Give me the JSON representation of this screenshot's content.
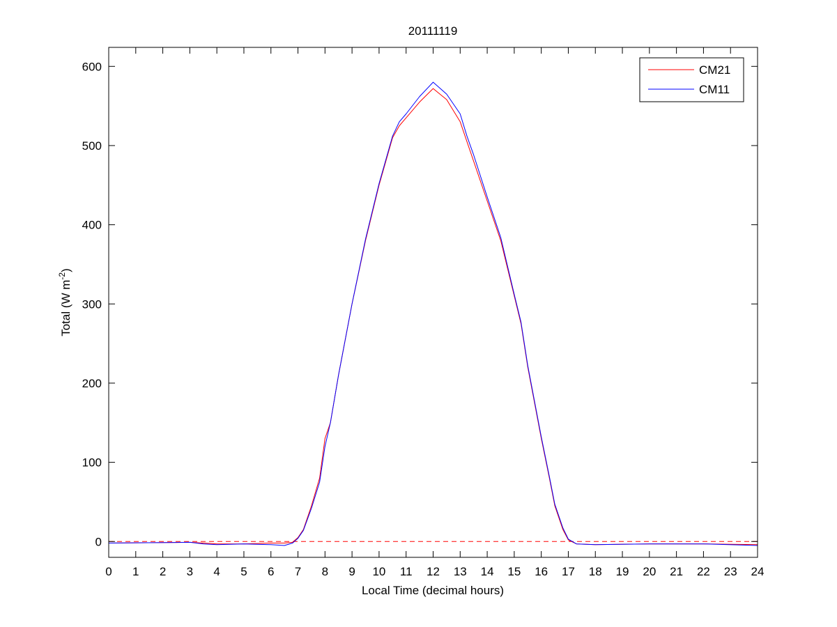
{
  "chart_data": {
    "type": "line",
    "title": "20111119",
    "xlabel": "Local Time (decimal hours)",
    "ylabel": "Total (W m-2)",
    "ylabel_parts": {
      "main": "Total (W m",
      "sup": "-2",
      "end": ")"
    },
    "xlim": [
      0,
      24
    ],
    "ylim": [
      -20,
      624
    ],
    "xticks": [
      0,
      1,
      2,
      3,
      4,
      5,
      6,
      7,
      8,
      9,
      10,
      11,
      12,
      13,
      14,
      15,
      16,
      17,
      18,
      19,
      20,
      21,
      22,
      23,
      24
    ],
    "yticks": [
      0,
      100,
      200,
      300,
      400,
      500,
      600
    ],
    "grid": false,
    "legend": {
      "placement": "top-right",
      "entries": [
        "CM21",
        "CM11"
      ]
    },
    "reference_line": {
      "y": 0,
      "style": "dashed",
      "color": "#ff0000"
    },
    "x": [
      0,
      3,
      3.5,
      4,
      5,
      6,
      6.5,
      6.8,
      7.0,
      7.2,
      7.5,
      7.8,
      8.0,
      8.2,
      8.5,
      9.0,
      9.5,
      10.0,
      10.5,
      10.75,
      11,
      11.5,
      12,
      12.5,
      13,
      13.25,
      13.5,
      14,
      14.5,
      15,
      15.25,
      15.5,
      16,
      16.3,
      16.5,
      16.8,
      17,
      17.3,
      18,
      20,
      22,
      24
    ],
    "series": [
      {
        "name": "CM21",
        "color": "#ff0000",
        "values": [
          -2,
          -1,
          -2,
          -3,
          -3,
          -2,
          -2,
          -1,
          5,
          15,
          45,
          80,
          130,
          150,
          210,
          300,
          380,
          450,
          510,
          525,
          535,
          555,
          572,
          558,
          530,
          505,
          480,
          430,
          380,
          310,
          275,
          220,
          130,
          80,
          45,
          15,
          2,
          -3,
          -4,
          -3,
          -3,
          -4
        ]
      },
      {
        "name": "CM11",
        "color": "#0000ff",
        "values": [
          -2,
          -1,
          -3,
          -4,
          -3,
          -4,
          -5,
          -2,
          4,
          14,
          42,
          75,
          120,
          150,
          210,
          300,
          382,
          452,
          512,
          530,
          540,
          562,
          580,
          565,
          540,
          512,
          488,
          435,
          384,
          312,
          277,
          222,
          132,
          82,
          47,
          17,
          3,
          -3,
          -4,
          -3,
          -3,
          -5
        ]
      }
    ]
  }
}
